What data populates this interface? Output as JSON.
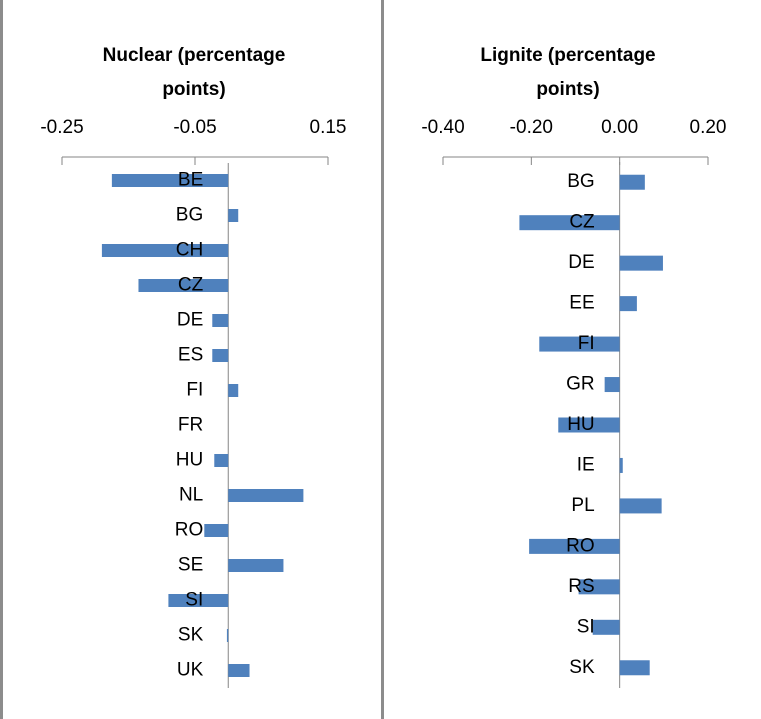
{
  "chart_data": [
    {
      "type": "bar",
      "orientation": "horizontal",
      "title": "Nuclear (percentage points)",
      "color": "#4f81bd",
      "categories": [
        "BE",
        "BG",
        "CH",
        "CZ",
        "DE",
        "ES",
        "FI",
        "FR",
        "HU",
        "NL",
        "RO",
        "SE",
        "SI",
        "SK",
        "UK"
      ],
      "values": [
        -0.175,
        0.015,
        -0.19,
        -0.135,
        -0.024,
        -0.024,
        0.015,
        0,
        -0.021,
        0.113,
        -0.036,
        0.083,
        -0.09,
        -0.002,
        0.032
      ],
      "xlim": [
        -0.25,
        0.15
      ],
      "xticks": [
        -0.25,
        -0.05,
        0.15
      ]
    },
    {
      "type": "bar",
      "orientation": "horizontal",
      "title": "Lignite (percentage points)",
      "color": "#4f81bd",
      "categories": [
        "BG",
        "CZ",
        "DE",
        "EE",
        "FI",
        "GR",
        "HU",
        "IE",
        "PL",
        "RO",
        "RS",
        "SI",
        "SK"
      ],
      "values": [
        0.057,
        -0.227,
        0.098,
        0.039,
        -0.182,
        -0.034,
        -0.139,
        0.007,
        0.095,
        -0.205,
        -0.093,
        -0.061,
        0.068
      ],
      "xlim": [
        -0.4,
        0.2
      ],
      "xticks": [
        {
          "value": -0.4,
          "label": "-0.40"
        },
        {
          "value": -0.2,
          "label": "-0.20"
        },
        {
          "value": 0,
          "label": "0.00"
        },
        {
          "value": 0.2,
          "label": "0.20"
        }
      ]
    }
  ]
}
